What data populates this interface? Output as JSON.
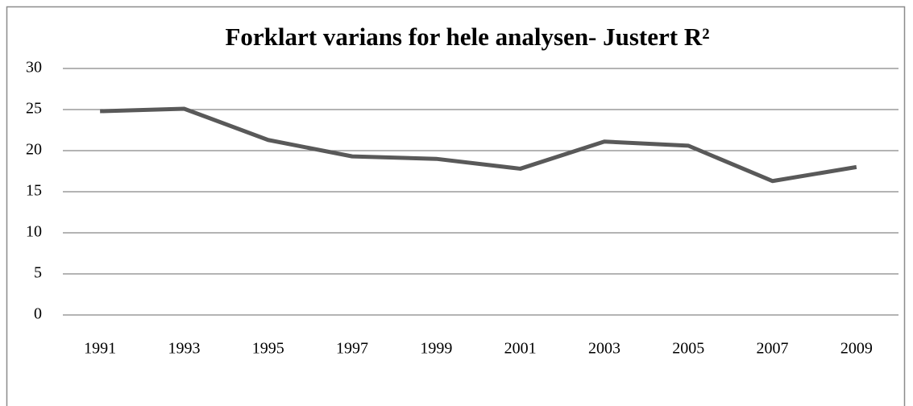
{
  "chart_data": {
    "type": "line",
    "title": "Forklart varians for hele analysen- Justert R²",
    "categories": [
      "1991",
      "1993",
      "1995",
      "1997",
      "1999",
      "2001",
      "2003",
      "2005",
      "2007",
      "2009"
    ],
    "values": [
      24.8,
      25.1,
      21.3,
      19.3,
      19.0,
      17.8,
      21.1,
      20.6,
      16.3,
      18.0
    ],
    "color": "#595959",
    "ylim": [
      0,
      30
    ],
    "yticks": [
      0,
      5,
      10,
      15,
      20,
      25,
      30
    ],
    "grid": true
  }
}
